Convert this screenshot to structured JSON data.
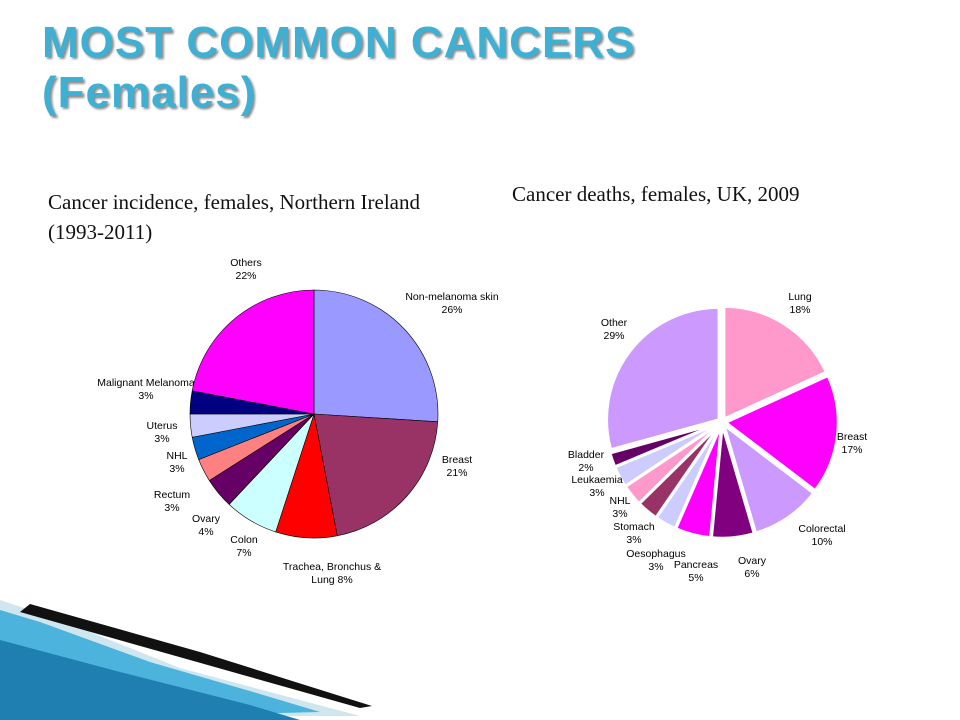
{
  "slide": {
    "title_line1": "MOST COMMON CANCERS",
    "title_line2": "(Females)"
  },
  "chart_data": [
    {
      "type": "pie",
      "title": "Cancer incidence, females, Northern Ireland (1993-2011)",
      "slices": [
        {
          "label": "Non-melanoma skin",
          "value": 26,
          "pct": "26%",
          "color": "#9999ff"
        },
        {
          "label": "Breast",
          "value": 21,
          "pct": "21%",
          "color": "#993366"
        },
        {
          "label": "Trachea, Bronchus & Lung",
          "value": 8,
          "pct": "8%",
          "color": "#ff0000"
        },
        {
          "label": "Colon",
          "value": 7,
          "pct": "7%",
          "color": "#ccffff"
        },
        {
          "label": "Ovary",
          "value": 4,
          "pct": "4%",
          "color": "#660066"
        },
        {
          "label": "Rectum",
          "value": 3,
          "pct": "3%",
          "color": "#ff8080"
        },
        {
          "label": "NHL",
          "value": 3,
          "pct": "3%",
          "color": "#0066cc"
        },
        {
          "label": "Uterus",
          "value": 3,
          "pct": "3%",
          "color": "#ccccff"
        },
        {
          "label": "Malignant Melanoma",
          "value": 3,
          "pct": "3%",
          "color": "#000080"
        },
        {
          "label": "Others",
          "value": 22,
          "pct": "22%",
          "color": "#ff00ff"
        }
      ]
    },
    {
      "type": "pie",
      "title": "Cancer deaths, females, UK, 2009",
      "slices": [
        {
          "label": "Lung",
          "value": 18,
          "pct": "18%",
          "color": "#ff99cc"
        },
        {
          "label": "Breast",
          "value": 17,
          "pct": "17%",
          "color": "#ff00ff"
        },
        {
          "label": "Colorectal",
          "value": 10,
          "pct": "10%",
          "color": "#cc99ff"
        },
        {
          "label": "Ovary",
          "value": 6,
          "pct": "6%",
          "color": "#800080"
        },
        {
          "label": "Pancreas",
          "value": 5,
          "pct": "5%",
          "color": "#ff00ff"
        },
        {
          "label": "Oesophagus",
          "value": 3,
          "pct": "3%",
          "color": "#ccccff"
        },
        {
          "label": "Stomach",
          "value": 3,
          "pct": "3%",
          "color": "#993366"
        },
        {
          "label": "NHL",
          "value": 3,
          "pct": "3%",
          "color": "#ff99cc"
        },
        {
          "label": "Leukaemia",
          "value": 3,
          "pct": "3%",
          "color": "#ccccff"
        },
        {
          "label": "Bladder",
          "value": 2,
          "pct": "2%",
          "color": "#660066"
        },
        {
          "label": "Other",
          "value": 29,
          "pct": "29%",
          "color": "#cc99ff"
        }
      ]
    }
  ]
}
